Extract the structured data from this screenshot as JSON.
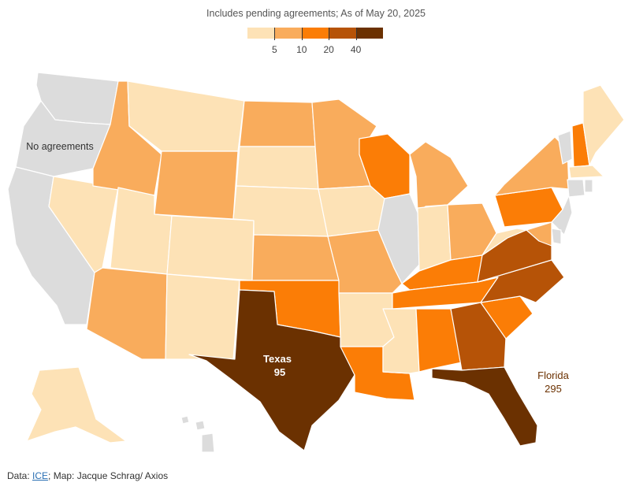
{
  "subtitle": "Includes pending agreements; As of May 20, 2025",
  "legend": {
    "colors": [
      "#fde2b6",
      "#f9ac5c",
      "#fb7d06",
      "#b65307",
      "#6b3101"
    ],
    "breaks": [
      "5",
      "10",
      "20",
      "40"
    ]
  },
  "labels": {
    "no_agreements": "No agreements",
    "texas_name": "Texas",
    "texas_value": "95",
    "florida_name": "Florida",
    "florida_value": "295"
  },
  "footer": {
    "prefix": "Data: ",
    "source_link": "ICE",
    "suffix": "; Map: Jacque Schrag/ Axios"
  },
  "map_data": {
    "no_agreement_color": "#dcdcdc",
    "states": [
      {
        "id": "WA",
        "bin": "none"
      },
      {
        "id": "OR",
        "bin": "none"
      },
      {
        "id": "CA",
        "bin": "none"
      },
      {
        "id": "NV",
        "bin": "lt5"
      },
      {
        "id": "ID",
        "bin": "5-10"
      },
      {
        "id": "MT",
        "bin": "lt5"
      },
      {
        "id": "WY",
        "bin": "5-10"
      },
      {
        "id": "UT",
        "bin": "lt5"
      },
      {
        "id": "AZ",
        "bin": "5-10"
      },
      {
        "id": "CO",
        "bin": "lt5"
      },
      {
        "id": "NM",
        "bin": "lt5"
      },
      {
        "id": "ND",
        "bin": "5-10"
      },
      {
        "id": "SD",
        "bin": "lt5"
      },
      {
        "id": "NE",
        "bin": "lt5"
      },
      {
        "id": "KS",
        "bin": "5-10"
      },
      {
        "id": "OK",
        "bin": "10-20"
      },
      {
        "id": "TX",
        "bin": "40+",
        "value": 95
      },
      {
        "id": "MN",
        "bin": "5-10"
      },
      {
        "id": "IA",
        "bin": "lt5"
      },
      {
        "id": "MO",
        "bin": "5-10"
      },
      {
        "id": "AR",
        "bin": "lt5"
      },
      {
        "id": "LA",
        "bin": "10-20"
      },
      {
        "id": "WI",
        "bin": "10-20"
      },
      {
        "id": "IL",
        "bin": "none"
      },
      {
        "id": "MI",
        "bin": "5-10"
      },
      {
        "id": "IN",
        "bin": "lt5"
      },
      {
        "id": "OH",
        "bin": "5-10"
      },
      {
        "id": "KY",
        "bin": "10-20"
      },
      {
        "id": "TN",
        "bin": "10-20"
      },
      {
        "id": "MS",
        "bin": "lt5"
      },
      {
        "id": "AL",
        "bin": "10-20"
      },
      {
        "id": "GA",
        "bin": "20-40"
      },
      {
        "id": "FL",
        "bin": "40+",
        "value": 295
      },
      {
        "id": "SC",
        "bin": "10-20"
      },
      {
        "id": "NC",
        "bin": "20-40"
      },
      {
        "id": "VA",
        "bin": "20-40"
      },
      {
        "id": "WV",
        "bin": "lt5"
      },
      {
        "id": "PA",
        "bin": "10-20"
      },
      {
        "id": "NY",
        "bin": "5-10"
      },
      {
        "id": "NJ",
        "bin": "none"
      },
      {
        "id": "DE",
        "bin": "none"
      },
      {
        "id": "MD",
        "bin": "5-10"
      },
      {
        "id": "VT",
        "bin": "none"
      },
      {
        "id": "NH",
        "bin": "10-20"
      },
      {
        "id": "ME",
        "bin": "lt5"
      },
      {
        "id": "MA",
        "bin": "lt5"
      },
      {
        "id": "CT",
        "bin": "none"
      },
      {
        "id": "RI",
        "bin": "none"
      },
      {
        "id": "AK",
        "bin": "lt5"
      },
      {
        "id": "HI",
        "bin": "none"
      }
    ]
  }
}
